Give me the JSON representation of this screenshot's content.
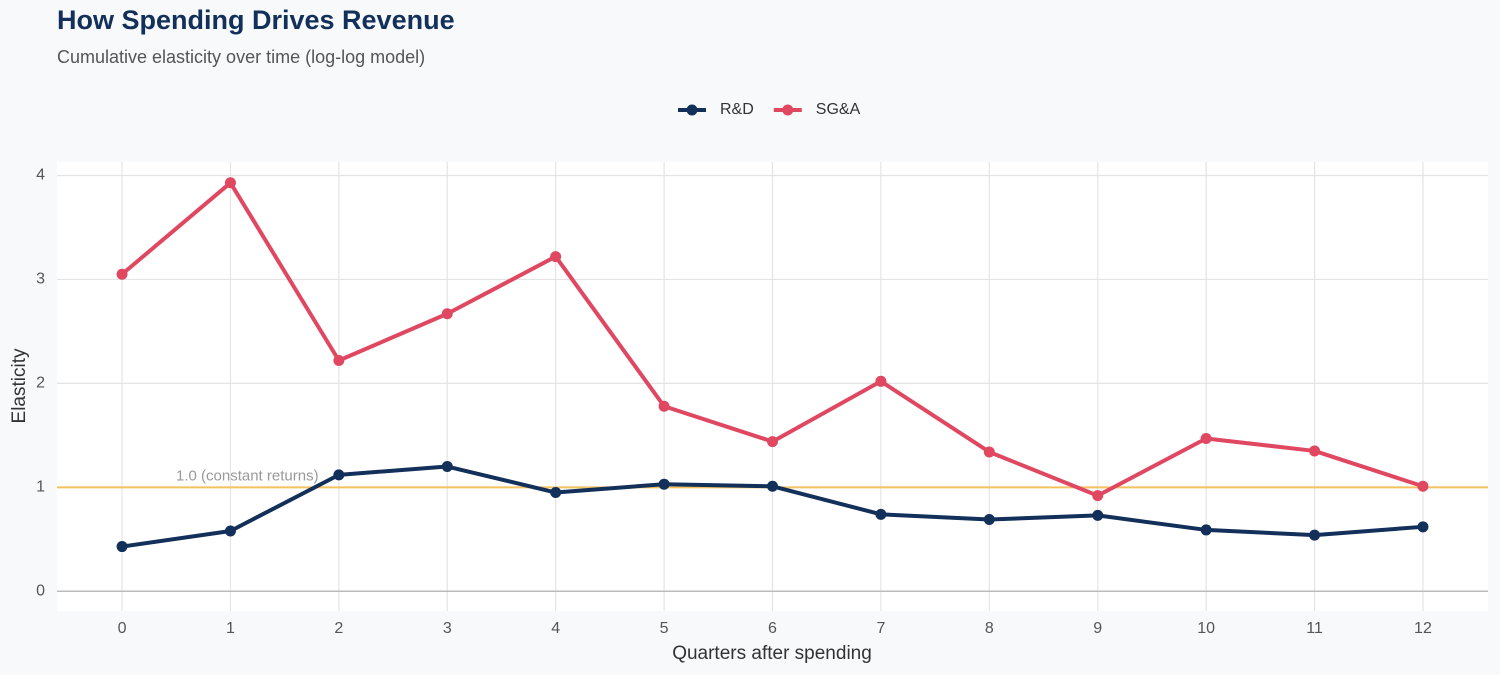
{
  "chart_data": {
    "type": "line",
    "title": "How Spending Drives Revenue",
    "subtitle": "Cumulative elasticity over time (log-log model)",
    "x_label": "Quarters after spending",
    "y_label": "Elasticity",
    "x": [
      0,
      1,
      2,
      3,
      4,
      5,
      6,
      7,
      8,
      9,
      10,
      11,
      12
    ],
    "series": [
      {
        "name": "R&D",
        "color": "#12305a",
        "values": [
          0.43,
          0.58,
          1.12,
          1.2,
          0.95,
          1.03,
          1.01,
          0.74,
          0.69,
          0.73,
          0.59,
          0.54,
          0.62
        ]
      },
      {
        "name": "SG&A",
        "color": "#e04862",
        "values": [
          3.05,
          3.93,
          2.22,
          2.67,
          3.22,
          1.78,
          1.44,
          2.02,
          1.34,
          0.92,
          1.47,
          1.35,
          1.01
        ]
      }
    ],
    "xlim": [
      -0.6,
      12.6
    ],
    "xticks": [
      0,
      1,
      2,
      3,
      4,
      5,
      6,
      7,
      8,
      9,
      10,
      11,
      12
    ],
    "ylim": [
      -0.19,
      4.13
    ],
    "yticks": [
      0,
      1,
      2,
      3,
      4
    ],
    "grid": true,
    "legend": "top",
    "reference_line": {
      "value": 1,
      "label": "1.0 (constant returns)",
      "color": "#f5c060"
    }
  }
}
